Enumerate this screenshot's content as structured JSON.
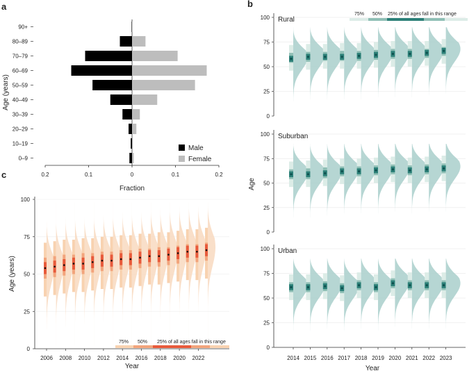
{
  "colors": {
    "male": "#000000",
    "female": "#bdbdbd",
    "teal_violin": "#a9cfcb",
    "teal_75": "#dcece7",
    "teal_50": "#8fbfb5",
    "teal_25": "#2c8078",
    "teal_median": "#0d4f4d",
    "orange_violin": "#f8dcc3",
    "orange_75": "#f8d2b0",
    "orange_50": "#f2a47c",
    "orange_25": "#e85a3b",
    "orange_median": "#111111"
  },
  "chart_data": [
    {
      "id": "a",
      "panel_label": "a",
      "type": "bar",
      "orientation": "horizontal-pyramid",
      "ylabel": "Age (years)",
      "xlabel": "Fraction",
      "categories": [
        "90+",
        "80–89",
        "70–79",
        "60–69",
        "50–59",
        "40–49",
        "30–39",
        "20–29",
        "10–19",
        "0–9"
      ],
      "series": [
        {
          "name": "Male",
          "values": [
            0.001,
            0.028,
            0.108,
            0.14,
            0.091,
            0.05,
            0.022,
            0.008,
            0.003,
            0.006
          ]
        },
        {
          "name": "Female",
          "values": [
            0.001,
            0.031,
            0.105,
            0.172,
            0.145,
            0.058,
            0.018,
            0.01,
            0.002,
            0.004
          ]
        }
      ],
      "xticks": [
        "0.2",
        "0.1",
        "0",
        "0.1",
        "0.2"
      ],
      "xlim": [
        -0.2,
        0.2
      ],
      "legend": [
        "Male",
        "Female"
      ]
    },
    {
      "id": "b",
      "panel_label": "b",
      "type": "violin",
      "ylabel": "Age",
      "xlabel": "Year",
      "x": [
        "2014",
        "2015",
        "2016",
        "2017",
        "2018",
        "2019",
        "2020",
        "2021",
        "2022",
        "2023"
      ],
      "ylim": [
        0,
        100
      ],
      "yticks": [
        "0",
        "25",
        "50",
        "75",
        "100"
      ],
      "legend": [
        "75%",
        "50%",
        "25% of all ages fall in this range"
      ],
      "subplots": [
        {
          "name": "Rural",
          "median": [
            58,
            60,
            60,
            60,
            61,
            62,
            63,
            63,
            64,
            66
          ],
          "q25": [
            54,
            55,
            56,
            56,
            56,
            57,
            58,
            58,
            59,
            61
          ],
          "q75": [
            64,
            65,
            65,
            66,
            66,
            67,
            68,
            68,
            68,
            70
          ]
        },
        {
          "name": "Suburban",
          "median": [
            59,
            59,
            60,
            62,
            62,
            63,
            64,
            63,
            64,
            65
          ],
          "q25": [
            54,
            54,
            55,
            57,
            57,
            58,
            59,
            58,
            59,
            60
          ],
          "q75": [
            64,
            65,
            66,
            67,
            67,
            68,
            69,
            68,
            69,
            70
          ]
        },
        {
          "name": "Urban",
          "median": [
            61,
            61,
            62,
            60,
            63,
            61,
            65,
            63,
            63,
            63
          ],
          "q25": [
            56,
            56,
            57,
            55,
            58,
            56,
            60,
            58,
            58,
            58
          ],
          "q75": [
            66,
            66,
            67,
            65,
            68,
            66,
            70,
            68,
            68,
            68
          ]
        }
      ]
    },
    {
      "id": "c",
      "panel_label": "c",
      "type": "violin",
      "ylabel": "Age (years)",
      "xlabel": "Year",
      "x": [
        2006,
        2007,
        2008,
        2009,
        2010,
        2011,
        2012,
        2013,
        2014,
        2015,
        2016,
        2017,
        2018,
        2019,
        2020,
        2021,
        2022,
        2023
      ],
      "xticks": [
        "2006",
        "2008",
        "2010",
        "2012",
        "2014",
        "2016",
        "2018",
        "2020",
        "2022"
      ],
      "ylim": [
        0,
        100
      ],
      "yticks": [
        "0",
        "25",
        "50",
        "75",
        "100"
      ],
      "median": [
        54,
        55,
        56,
        57,
        57,
        58,
        59,
        59,
        60,
        60,
        61,
        62,
        62,
        63,
        64,
        65,
        65,
        66
      ],
      "q25": [
        47,
        48,
        49,
        50,
        50,
        51,
        52,
        52,
        53,
        53,
        54,
        55,
        55,
        56,
        57,
        58,
        58,
        59
      ],
      "q75": [
        61,
        62,
        63,
        63,
        64,
        64,
        65,
        65,
        66,
        66,
        67,
        67,
        68,
        68,
        69,
        70,
        70,
        71
      ],
      "legend": [
        "75%",
        "50%",
        "25% of all ages fall in this range"
      ]
    }
  ]
}
